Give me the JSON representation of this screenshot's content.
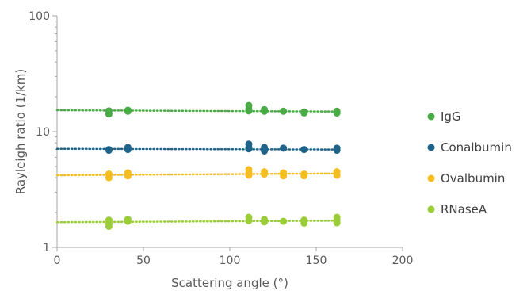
{
  "chart_data": {
    "type": "scatter",
    "title": "",
    "xlabel": "Scattering angle (°)",
    "ylabel": "Rayleigh ratio (1/km)",
    "xlim": [
      0,
      200
    ],
    "ylim": [
      1,
      100
    ],
    "yscale": "log",
    "xticks": [
      0,
      50,
      100,
      150,
      200
    ],
    "yticks": [
      1,
      10,
      100
    ],
    "grid": false,
    "legend": "right",
    "series": [
      {
        "name": "IgG",
        "color": "#4aab46",
        "trend": [
          15.3,
          14.9
        ],
        "points": [
          [
            30,
            15.1
          ],
          [
            30,
            14.2
          ],
          [
            41,
            15.3
          ],
          [
            41,
            15.0
          ],
          [
            111,
            16.8
          ],
          [
            111,
            15.7
          ],
          [
            111,
            15.1
          ],
          [
            120,
            15.5
          ],
          [
            120,
            15.0
          ],
          [
            131,
            15.0
          ],
          [
            143,
            14.8
          ],
          [
            143,
            14.5
          ],
          [
            162,
            15.0
          ],
          [
            162,
            14.5
          ]
        ]
      },
      {
        "name": "Conalbumin",
        "color": "#1f6488",
        "trend": [
          7.1,
          7.0
        ],
        "points": [
          [
            30,
            7.0
          ],
          [
            30,
            6.9
          ],
          [
            41,
            7.3
          ],
          [
            41,
            7.0
          ],
          [
            111,
            7.8
          ],
          [
            111,
            7.3
          ],
          [
            111,
            7.1
          ],
          [
            120,
            7.3
          ],
          [
            120,
            6.8
          ],
          [
            131,
            7.2
          ],
          [
            143,
            7.0
          ],
          [
            162,
            7.2
          ],
          [
            162,
            6.9
          ]
        ]
      },
      {
        "name": "Ovalbumin",
        "color": "#f5bd1f",
        "trend": [
          4.2,
          4.35
        ],
        "points": [
          [
            30,
            4.3
          ],
          [
            30,
            4.0
          ],
          [
            41,
            4.4
          ],
          [
            41,
            4.15
          ],
          [
            111,
            4.7
          ],
          [
            111,
            4.4
          ],
          [
            111,
            4.2
          ],
          [
            120,
            4.5
          ],
          [
            120,
            4.3
          ],
          [
            131,
            4.4
          ],
          [
            131,
            4.15
          ],
          [
            143,
            4.3
          ],
          [
            143,
            4.15
          ],
          [
            162,
            4.5
          ],
          [
            162,
            4.2
          ]
        ]
      },
      {
        "name": "RNaseA",
        "color": "#9acd38",
        "trend": [
          1.65,
          1.7
        ],
        "points": [
          [
            30,
            1.72
          ],
          [
            30,
            1.6
          ],
          [
            30,
            1.52
          ],
          [
            41,
            1.75
          ],
          [
            41,
            1.68
          ],
          [
            111,
            1.82
          ],
          [
            111,
            1.7
          ],
          [
            120,
            1.74
          ],
          [
            120,
            1.66
          ],
          [
            131,
            1.68
          ],
          [
            143,
            1.72
          ],
          [
            143,
            1.62
          ],
          [
            162,
            1.82
          ],
          [
            162,
            1.72
          ],
          [
            162,
            1.63
          ]
        ]
      }
    ]
  }
}
